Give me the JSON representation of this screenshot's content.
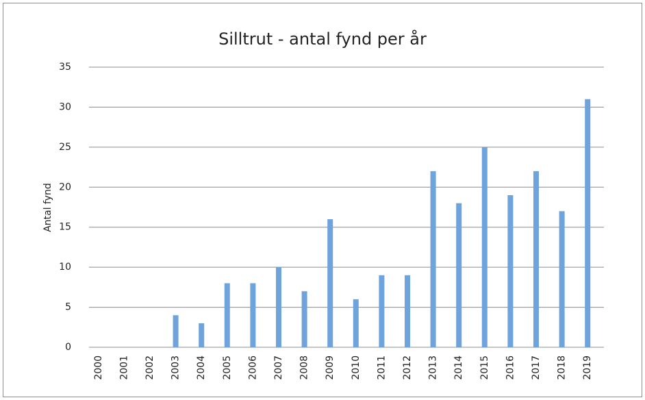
{
  "chart_data": {
    "type": "bar",
    "title": "Silltrut - antal fynd per år",
    "y_label": "Antal fynd",
    "categories": [
      "2000",
      "2001",
      "2002",
      "2003",
      "2004",
      "2005",
      "2006",
      "2007",
      "2008",
      "2009",
      "2010",
      "2011",
      "2012",
      "2013",
      "2014",
      "2015",
      "2016",
      "2017",
      "2018",
      "2019"
    ],
    "values": [
      0,
      0,
      0,
      4,
      3,
      8,
      8,
      10,
      7,
      16,
      6,
      9,
      9,
      22,
      18,
      25,
      19,
      22,
      17,
      31
    ],
    "color": "#6fa3dc",
    "ylim": [
      0,
      35
    ],
    "yticks": [
      0,
      5,
      10,
      15,
      20,
      25,
      30,
      35
    ],
    "grid": true
  }
}
